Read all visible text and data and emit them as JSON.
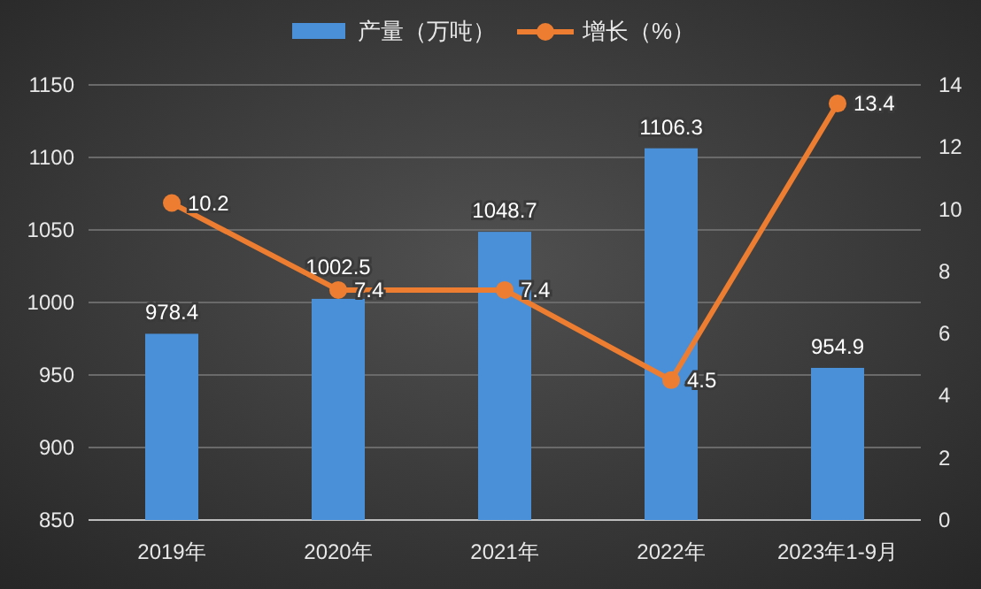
{
  "chart_data": {
    "type": "bar",
    "categories": [
      "2019年",
      "2020年",
      "2021年",
      "2022年",
      "2023年1-9月"
    ],
    "series": [
      {
        "name": "产量（万吨）",
        "color": "#4a90d9",
        "values": [
          978.4,
          1002.5,
          1048.7,
          1106.3,
          954.9
        ]
      },
      {
        "name": "增长（%）",
        "type": "line",
        "axis": "y2",
        "color": "#ed7d31",
        "marker": "circle",
        "values": [
          10.2,
          7.4,
          7.4,
          4.5,
          13.4
        ]
      }
    ],
    "ylim": [
      850,
      1150
    ],
    "yticks": [
      850,
      900,
      950,
      1000,
      1050,
      1100,
      1150
    ],
    "y2lim": [
      0,
      14
    ],
    "y2ticks": [
      0,
      2,
      4,
      6,
      8,
      10,
      12,
      14
    ],
    "grid": "y",
    "legend": "top",
    "data_labels": true
  }
}
